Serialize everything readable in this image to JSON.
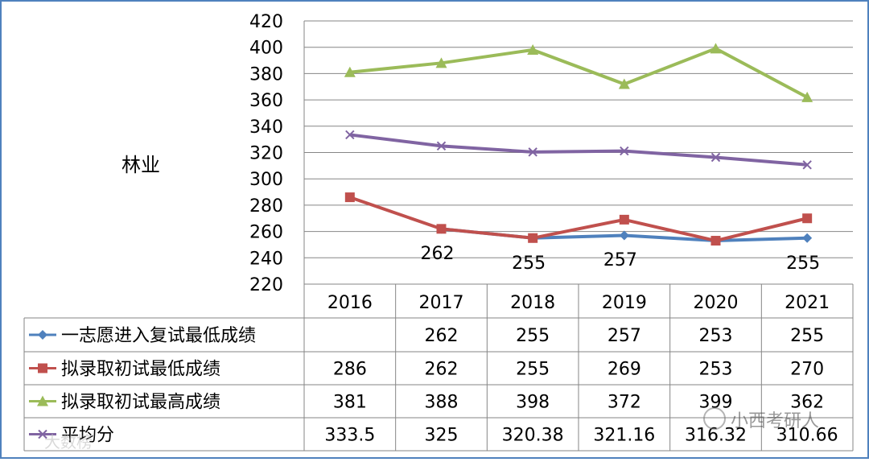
{
  "chart_data": {
    "type": "line",
    "title": "林业",
    "categories": [
      "2016",
      "2017",
      "2018",
      "2019",
      "2020",
      "2021"
    ],
    "ylim": [
      220,
      420
    ],
    "yticks": [
      220,
      240,
      260,
      280,
      300,
      320,
      340,
      360,
      380,
      400,
      420
    ],
    "grid": true,
    "legend": "data-table-left",
    "series": [
      {
        "name": "一志愿进入复试最低成绩",
        "color": "#4F81BD",
        "marker": "diamond",
        "values": [
          null,
          262,
          255,
          257,
          253,
          255
        ],
        "table": [
          "",
          "262",
          "255",
          "257",
          "253",
          "255"
        ]
      },
      {
        "name": "拟录取初试最低成绩",
        "color": "#C0504D",
        "marker": "square",
        "values": [
          286,
          262,
          255,
          269,
          253,
          270
        ],
        "table": [
          "286",
          "262",
          "255",
          "269",
          "253",
          "270"
        ]
      },
      {
        "name": "拟录取初试最高成绩",
        "color": "#9BBB59",
        "marker": "triangle",
        "values": [
          381,
          388,
          398,
          372,
          399,
          362
        ],
        "table": [
          "381",
          "388",
          "398",
          "372",
          "399",
          "362"
        ]
      },
      {
        "name": "平均分",
        "color": "#8064A2",
        "marker": "x",
        "values": [
          333.5,
          325,
          320.38,
          321.16,
          316.32,
          310.66
        ],
        "table": [
          "333.5",
          "325",
          "320.38",
          "321.16",
          "316.32",
          "310.66"
        ]
      }
    ],
    "annotations": [
      {
        "category": "2017",
        "text": "262"
      },
      {
        "category": "2018",
        "text": "255"
      },
      {
        "category": "2019",
        "text": "257"
      },
      {
        "category": "2021",
        "text": "255"
      }
    ]
  },
  "watermarks": {
    "left": "大数榜",
    "right": "小西考研人"
  }
}
